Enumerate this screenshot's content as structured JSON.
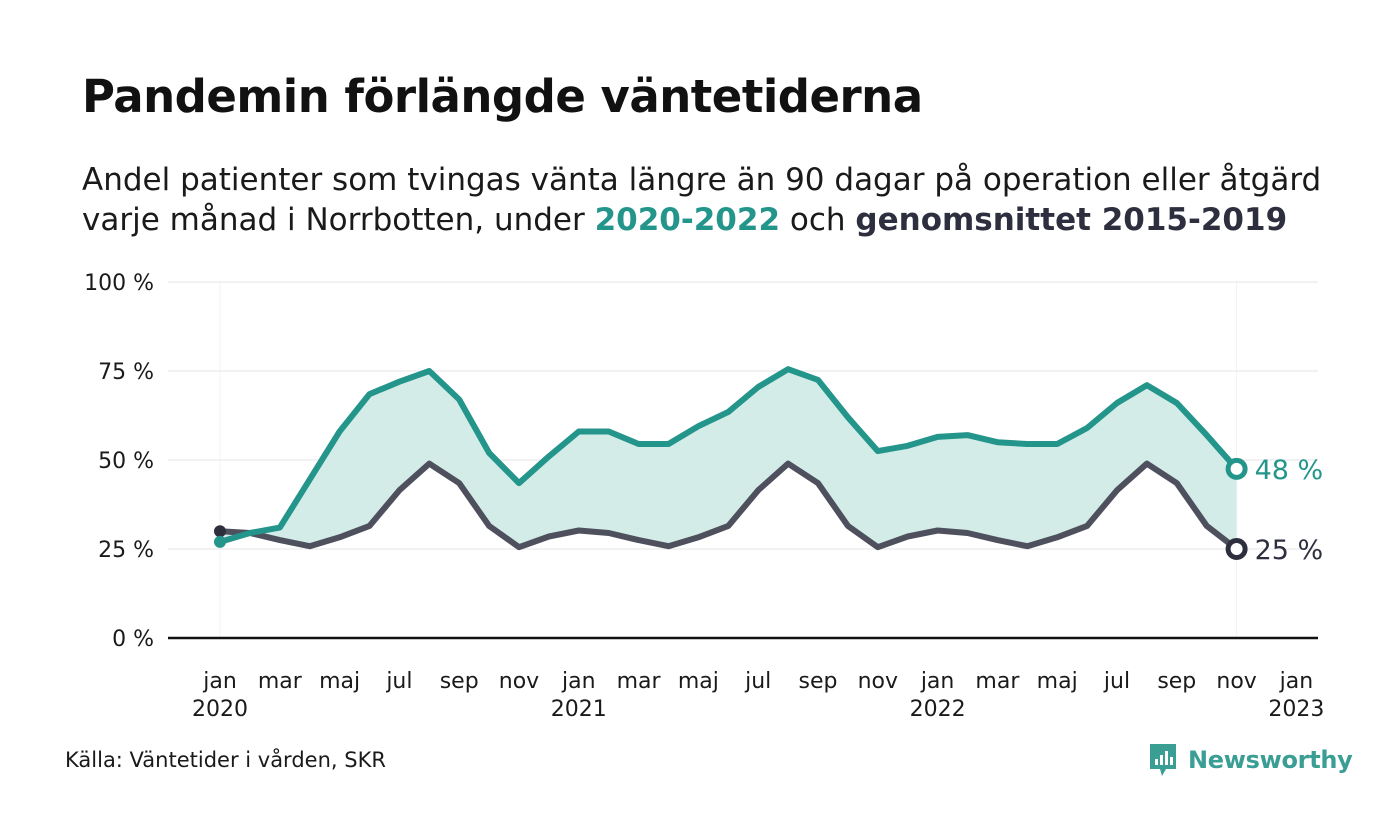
{
  "title": "Pandemin förlängde väntetiderna",
  "subtitle": {
    "line1": "Andel patienter som tvingas vänta längre än 90 dagar på operation eller åtgärd",
    "line2_pre": "varje månad i Norrbotten, under ",
    "line2_teal": "2020-2022",
    "line2_mid": " och ",
    "line2_dark": "genomsnittet 2015-2019"
  },
  "source": "Källa: Väntetider i vården, SKR",
  "brand": {
    "name": "Newsworthy",
    "icon": "newsworthy-logo-icon"
  },
  "colors": {
    "teal": "#23958b",
    "teal_fill": "#d3ece8",
    "dark": "#4e505d",
    "dark_marker": "#2d2f3e"
  },
  "chart_data": {
    "type": "line",
    "x_ticks": [
      {
        "month": 0,
        "label": "jan",
        "year": "2020"
      },
      {
        "month": 2,
        "label": "mar",
        "year": ""
      },
      {
        "month": 4,
        "label": "maj",
        "year": ""
      },
      {
        "month": 6,
        "label": "jul",
        "year": ""
      },
      {
        "month": 8,
        "label": "sep",
        "year": ""
      },
      {
        "month": 10,
        "label": "nov",
        "year": ""
      },
      {
        "month": 12,
        "label": "jan",
        "year": "2021"
      },
      {
        "month": 14,
        "label": "mar",
        "year": ""
      },
      {
        "month": 16,
        "label": "maj",
        "year": ""
      },
      {
        "month": 18,
        "label": "jul",
        "year": ""
      },
      {
        "month": 20,
        "label": "sep",
        "year": ""
      },
      {
        "month": 22,
        "label": "nov",
        "year": ""
      },
      {
        "month": 24,
        "label": "jan",
        "year": "2022"
      },
      {
        "month": 26,
        "label": "mar",
        "year": ""
      },
      {
        "month": 28,
        "label": "maj",
        "year": ""
      },
      {
        "month": 30,
        "label": "jul",
        "year": ""
      },
      {
        "month": 32,
        "label": "sep",
        "year": ""
      },
      {
        "month": 34,
        "label": "nov",
        "year": ""
      },
      {
        "month": 36,
        "label": "jan",
        "year": "2023"
      }
    ],
    "y_ticks": [
      {
        "value": 0,
        "label": "0 %"
      },
      {
        "value": 25,
        "label": "25 %"
      },
      {
        "value": 50,
        "label": "50 %"
      },
      {
        "value": 75,
        "label": "75 %"
      },
      {
        "value": 100,
        "label": "100 %"
      }
    ],
    "ylim": [
      0,
      100
    ],
    "xlim": [
      0,
      36
    ],
    "grid": true,
    "series": [
      {
        "name": "2020-2022",
        "color": "#23958b",
        "values": [
          27,
          29.5,
          31,
          44.5,
          58,
          68.5,
          72,
          75,
          67,
          52,
          43.5,
          51,
          58,
          58,
          54.5,
          54.5,
          59.5,
          63.5,
          70.5,
          75.5,
          72.5,
          62,
          52.5,
          54,
          56.5,
          57,
          55,
          54.5,
          54.5,
          59,
          66,
          71,
          66,
          57,
          47.5
        ],
        "end_label": "48 %"
      },
      {
        "name": "genomsnittet 2015-2019",
        "color": "#4e505d",
        "values": [
          30,
          29.5,
          27.5,
          25.8,
          28.3,
          31.5,
          41.5,
          49,
          43.5,
          31.5,
          25.5,
          28.5,
          30.2,
          29.5,
          27.5,
          25.8,
          28.3,
          31.5,
          41.5,
          49,
          43.5,
          31.5,
          25.5,
          28.5,
          30.2,
          29.5,
          27.5,
          25.8,
          28.3,
          31.5,
          41.5,
          49,
          43.5,
          31.5,
          25
        ],
        "end_label": "25 %"
      }
    ]
  }
}
